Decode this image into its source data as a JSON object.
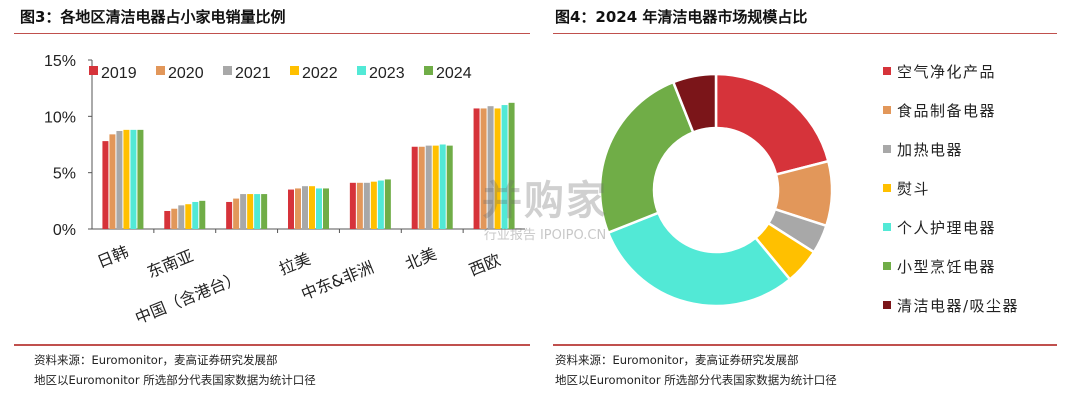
{
  "left": {
    "title": "图3：各地区清洁电器占小家电销量比例",
    "source_line1": "资料来源：Euromonitor，麦高证券研究发展部",
    "source_line2": "地区以Euromonitor 所选部分代表国家数据为统计口径"
  },
  "right": {
    "title": "图4：2024 年清洁电器市场规模占比",
    "source_line1": "资料来源：Euromonitor，麦高证券研究发展部",
    "source_line2": "地区以Euromonitor 所选部分代表国家数据为统计口径"
  },
  "watermark": {
    "main": "并购家",
    "sub": "行业报告 IPOIPO.CN"
  },
  "chart_data": [
    {
      "type": "bar",
      "title": "",
      "categories": [
        "日韩",
        "东南亚",
        "中国（含港台）",
        "拉美",
        "中东&非洲",
        "北美",
        "西欧"
      ],
      "series": [
        {
          "name": "2019",
          "color": "#d6333a",
          "values": [
            7.8,
            1.6,
            2.4,
            3.5,
            4.1,
            7.3,
            10.7
          ]
        },
        {
          "name": "2020",
          "color": "#e2975a",
          "values": [
            8.4,
            1.8,
            2.7,
            3.6,
            4.1,
            7.3,
            10.7
          ]
        },
        {
          "name": "2021",
          "color": "#a8a8a8",
          "values": [
            8.7,
            2.1,
            3.1,
            3.8,
            4.1,
            7.4,
            10.9
          ]
        },
        {
          "name": "2022",
          "color": "#ffc000",
          "values": [
            8.8,
            2.2,
            3.1,
            3.8,
            4.2,
            7.4,
            10.7
          ]
        },
        {
          "name": "2023",
          "color": "#52e9d6",
          "values": [
            8.8,
            2.4,
            3.1,
            3.6,
            4.3,
            7.5,
            11.0
          ]
        },
        {
          "name": "2024",
          "color": "#70ad47",
          "values": [
            8.8,
            2.5,
            3.1,
            3.6,
            4.4,
            7.4,
            11.2
          ]
        }
      ],
      "yticks": [
        "0%",
        "5%",
        "10%",
        "15%"
      ],
      "ylim": [
        0,
        15
      ],
      "legend_position": "top",
      "grid": false
    },
    {
      "type": "pie",
      "donut": true,
      "title": "",
      "slices": [
        {
          "label": "空气净化产品",
          "value": 21,
          "color": "#d6333a"
        },
        {
          "label": "食品制备电器",
          "value": 9,
          "color": "#e2975a"
        },
        {
          "label": "加热电器",
          "value": 4,
          "color": "#a8a8a8"
        },
        {
          "label": "熨斗",
          "value": 5,
          "color": "#ffc000"
        },
        {
          "label": "个人护理电器",
          "value": 30,
          "color": "#52e9d6"
        },
        {
          "label": "小型烹饪电器",
          "value": 25,
          "color": "#70ad47"
        },
        {
          "label": "清洁电器/吸尘器",
          "value": 6,
          "color": "#7b1519"
        }
      ],
      "legend_position": "right"
    }
  ]
}
